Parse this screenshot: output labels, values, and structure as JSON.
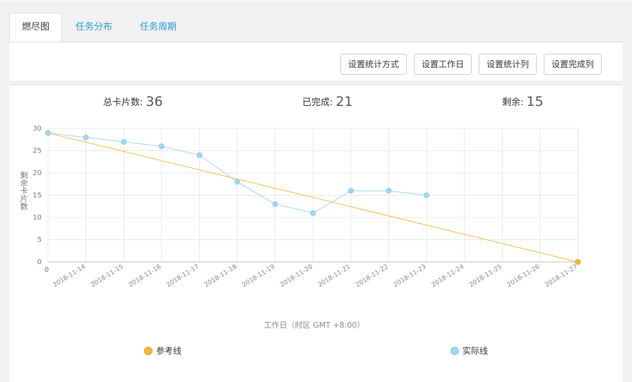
{
  "tabs": [
    {
      "label": "燃尽图",
      "active": true
    },
    {
      "label": "任务分布",
      "active": false
    },
    {
      "label": "任务周期",
      "active": false
    }
  ],
  "toolbar": {
    "buttons": [
      "设置统计方式",
      "设置工作日",
      "设置统计列",
      "设置完成列"
    ]
  },
  "stats": {
    "total_label": "总卡片数:",
    "total_value": "36",
    "done_label": "已完成:",
    "done_value": "21",
    "remaining_label": "剩余:",
    "remaining_value": "15"
  },
  "colors": {
    "reference_line": "#f5b93c",
    "actual_line": "#9fd8f0",
    "tab_link": "#2a9bd1"
  },
  "chart_data": {
    "type": "line",
    "categories": [
      "0",
      "2018-11-14",
      "2018-11-15",
      "2018-11-16",
      "2018-11-17",
      "2018-11-18",
      "2018-11-19",
      "2018-11-20",
      "2018-11-21",
      "2018-11-22",
      "2018-11-23",
      "2018-11-24",
      "2018-11-25",
      "2018-11-26",
      "2018-11-27"
    ],
    "series": [
      {
        "name": "参考线",
        "values": [
          29,
          null,
          null,
          null,
          null,
          null,
          null,
          null,
          null,
          null,
          null,
          null,
          null,
          null,
          0
        ]
      },
      {
        "name": "实际线",
        "values": [
          29,
          28,
          27,
          26,
          24,
          18,
          13,
          11,
          16,
          16,
          15,
          null,
          null,
          null,
          null
        ]
      }
    ],
    "xlabel": "工作日（时区 GMT +8:00）",
    "ylabel": "剩余卡片数",
    "ylim": [
      0,
      30
    ],
    "yticks": [
      0,
      5,
      10,
      15,
      20,
      25,
      30
    ],
    "grid": true,
    "legend": "bottom"
  }
}
